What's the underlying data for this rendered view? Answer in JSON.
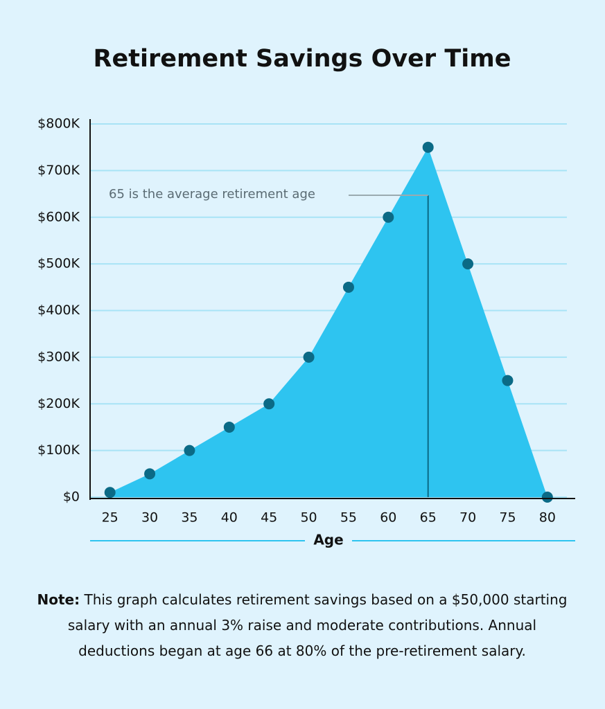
{
  "chart_data": {
    "type": "area",
    "title": "Retirement Savings Over Time",
    "x_label": "Age",
    "x": [
      25,
      30,
      35,
      40,
      45,
      50,
      55,
      60,
      65,
      70,
      75,
      80
    ],
    "xlim": [
      22.5,
      83.5
    ],
    "series": [
      {
        "name": "Retirement savings",
        "color": "#2ec4f0",
        "marker_color": "#0b6a86",
        "values": [
          10000,
          50000,
          100000,
          150000,
          200000,
          300000,
          450000,
          600000,
          750000,
          500000,
          250000,
          0
        ]
      }
    ],
    "ylim": [
      0,
      800000
    ],
    "yticks": [
      {
        "value": 0,
        "label": "$0"
      },
      {
        "value": 100000,
        "label": "$100K"
      },
      {
        "value": 200000,
        "label": "$200K"
      },
      {
        "value": 300000,
        "label": "$300K"
      },
      {
        "value": 400000,
        "label": "$400K"
      },
      {
        "value": 500000,
        "label": "$500K"
      },
      {
        "value": 600000,
        "label": "$600K"
      },
      {
        "value": 700000,
        "label": "$700K"
      },
      {
        "value": 800000,
        "label": "$800K"
      }
    ],
    "grid": true,
    "annotation": {
      "text": "65 is the average retirement age",
      "x": 65
    }
  },
  "note": {
    "label": "Note:",
    "text": "This graph calculates retirement savings based on a $50,000 starting salary with an annual 3% raise and moderate contributions. Annual deductions began at age 66 at 80% of the pre-retirement salary."
  }
}
